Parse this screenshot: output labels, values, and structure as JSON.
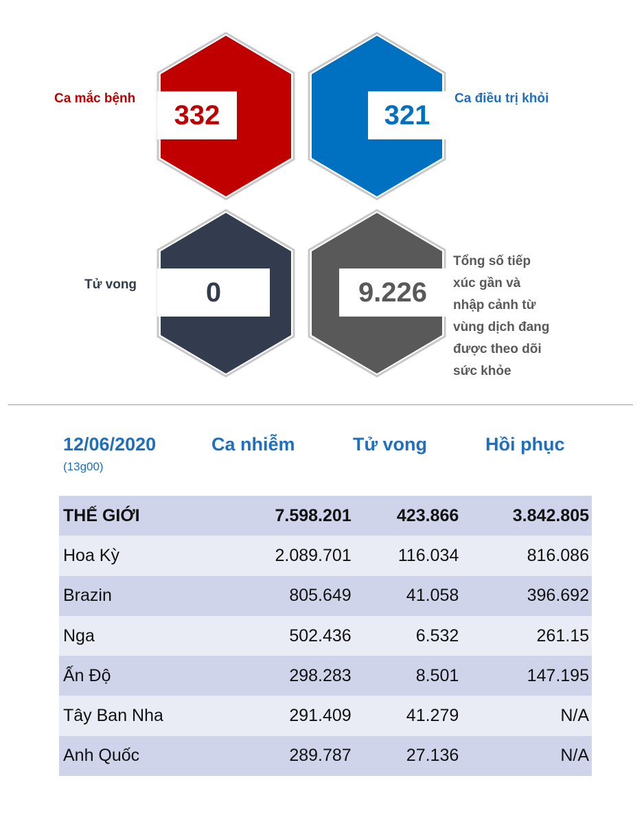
{
  "stats": {
    "cases": {
      "label": "Ca mắc bệnh",
      "value": "332",
      "color": "#c00000"
    },
    "recovered": {
      "label": "Ca điều trị khỏi",
      "value": "321",
      "color": "#0070c0"
    },
    "deaths": {
      "label": "Tử vong",
      "value": "0",
      "color": "#323c4e"
    },
    "monitored": {
      "label_lines": [
        "Tổng số tiếp",
        "xúc gần và",
        "nhập cảnh từ",
        "vùng dịch đang",
        "được theo dõi",
        "sức khỏe"
      ],
      "value": "9.226",
      "color": "#595959"
    }
  },
  "table": {
    "date": "12/06/2020",
    "time": "(13g00)",
    "headers": [
      "Ca nhiễm",
      "Tử vong",
      "Hồi phục"
    ],
    "rows": [
      {
        "name": "THẾ GIỚI",
        "cases": "7.598.201",
        "deaths": "423.866",
        "recovered": "3.842.805"
      },
      {
        "name": "Hoa Kỳ",
        "cases": "2.089.701",
        "deaths": "116.034",
        "recovered": "816.086"
      },
      {
        "name": "Brazin",
        "cases": "805.649",
        "deaths": "41.058",
        "recovered": "396.692"
      },
      {
        "name": "Nga",
        "cases": "502.436",
        "deaths": "6.532",
        "recovered": "261.15"
      },
      {
        "name": "Ấn Độ",
        "cases": "298.283",
        "deaths": "8.501",
        "recovered": "147.195"
      },
      {
        "name": "Tây Ban Nha",
        "cases": "291.409",
        "deaths": "41.279",
        "recovered": "N/A"
      },
      {
        "name": "Anh Quốc",
        "cases": "289.787",
        "deaths": "27.136",
        "recovered": "N/A"
      }
    ]
  }
}
